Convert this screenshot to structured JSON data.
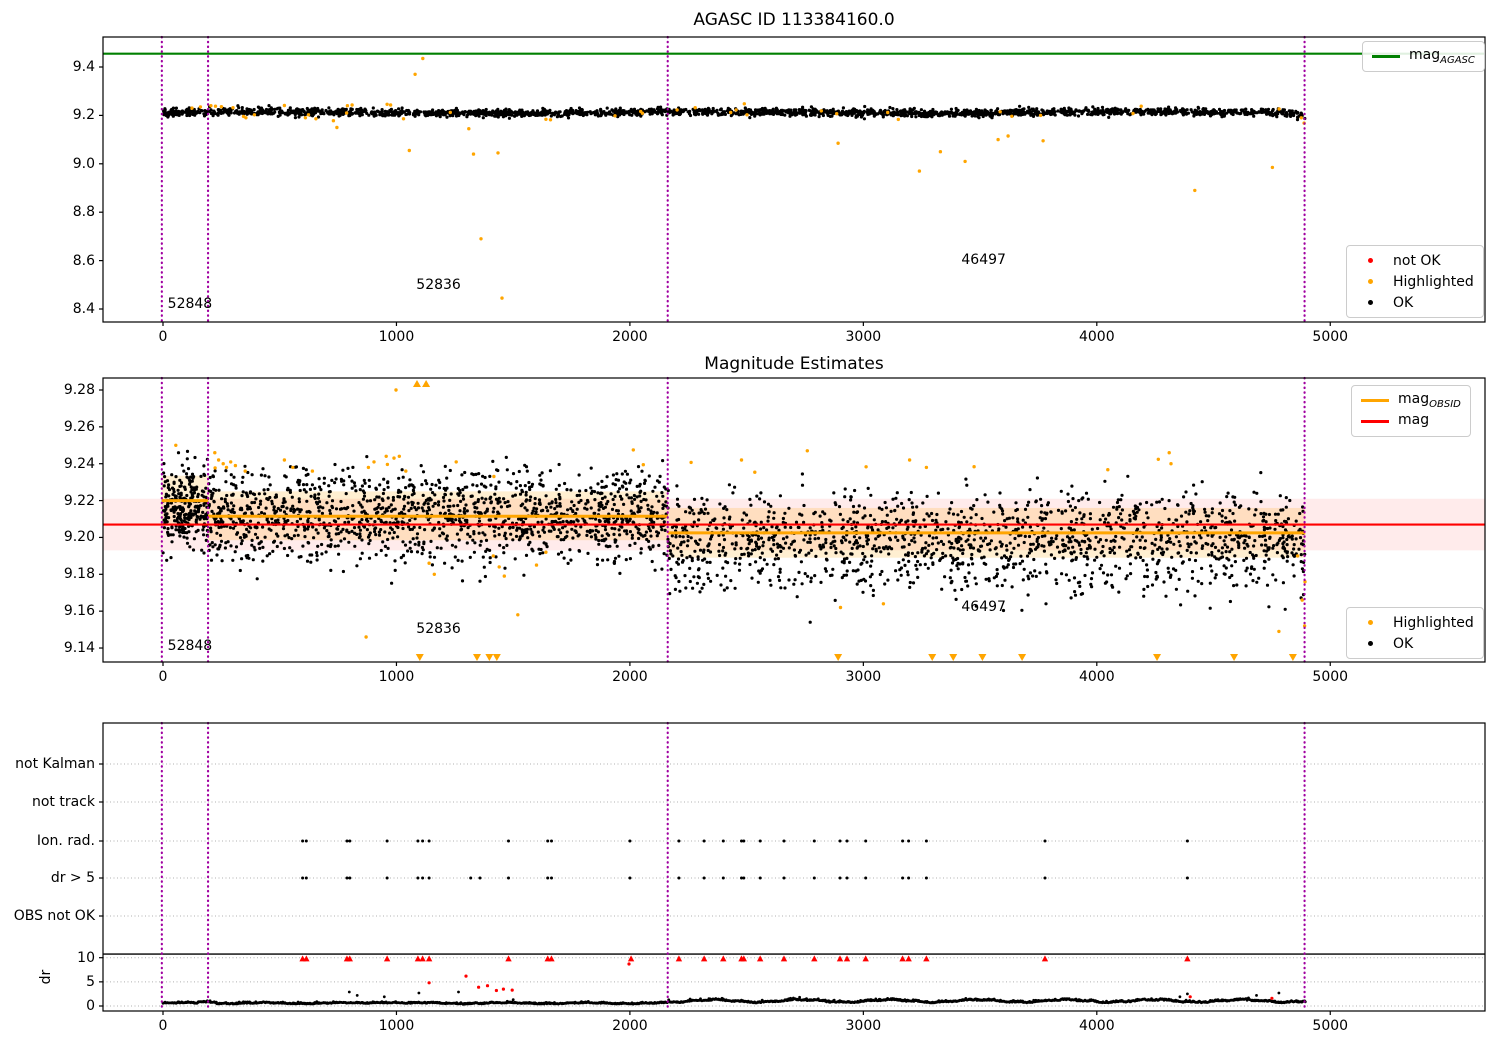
{
  "figure": {
    "bg": "#ffffff"
  },
  "colors": {
    "ok": "#000000",
    "highlighted": "#FFA500",
    "not_ok": "#FF0000",
    "mag_agasc_line": "#008000",
    "mag_line": "#FF0000",
    "mag_obsid_line": "#FFA500",
    "vline": "#A000A0",
    "grid": "#b0b0b0",
    "spine": "#000000",
    "band_red": "rgba(255,0,0,0.08)",
    "band_orange": "rgba(255,165,0,0.18)"
  },
  "legends": {
    "top_mag": {
      "items": [
        {
          "type": "line",
          "color": "#008000",
          "label": "mag",
          "sub": "AGASC"
        }
      ]
    },
    "top_status": {
      "items": [
        {
          "type": "dot",
          "color": "#FF0000",
          "label": "not OK"
        },
        {
          "type": "dot",
          "color": "#FFA500",
          "label": "Highlighted"
        },
        {
          "type": "dot",
          "color": "#000000",
          "label": "OK"
        }
      ]
    },
    "mid_mag": {
      "items": [
        {
          "type": "line",
          "color": "#FFA500",
          "label": "mag",
          "sub": "OBSID"
        },
        {
          "type": "line",
          "color": "#FF0000",
          "label": "mag",
          "sub": ""
        }
      ]
    },
    "mid_status": {
      "items": [
        {
          "type": "dot",
          "color": "#FFA500",
          "label": "Highlighted"
        },
        {
          "type": "dot",
          "color": "#000000",
          "label": "OK"
        }
      ]
    }
  },
  "chart_data": [
    {
      "id": "top",
      "type": "scatter",
      "title": "AGASC ID 113384160.0",
      "xlim": [
        -270,
        5680
      ],
      "ylim": [
        8.346,
        9.524
      ],
      "xticks": [
        "0",
        "1000",
        "2000",
        "3000",
        "4000",
        "5000"
      ],
      "yticks": [
        "8.4",
        "8.6",
        "8.8",
        "9.0",
        "9.2",
        "9.4"
      ],
      "vlines_x": [
        -5,
        193,
        2162,
        4890
      ],
      "mag_agasc_y": 9.455,
      "annotations": [
        {
          "text": "52848",
          "x": 20,
          "y": 8.405
        },
        {
          "text": "52836",
          "x": 1085,
          "y": 8.483
        },
        {
          "text": "46497",
          "x": 3420,
          "y": 8.585
        }
      ],
      "ok_generate": {
        "seed": 7,
        "n": 2300,
        "x0": 0,
        "x1": 4893,
        "base": 9.212,
        "sigma": 0.0075
      },
      "highlighted_generate": {
        "seed": 11,
        "n": 22,
        "x0": 0,
        "x1": 4890,
        "base": 9.214,
        "sigma": 0.013
      },
      "highlighted_points": [
        [
          160,
          9.235
        ],
        [
          205,
          9.24
        ],
        [
          225,
          9.238
        ],
        [
          250,
          9.236
        ],
        [
          300,
          9.232
        ],
        [
          345,
          9.196
        ],
        [
          355,
          9.19
        ],
        [
          520,
          9.241
        ],
        [
          610,
          9.19
        ],
        [
          655,
          9.186
        ],
        [
          730,
          9.178
        ],
        [
          745,
          9.15
        ],
        [
          790,
          9.24
        ],
        [
          810,
          9.243
        ],
        [
          960,
          9.246
        ],
        [
          975,
          9.243
        ],
        [
          1030,
          9.186
        ],
        [
          1055,
          9.055
        ],
        [
          1080,
          9.37
        ],
        [
          1113,
          9.435
        ],
        [
          1310,
          9.145
        ],
        [
          1330,
          9.04
        ],
        [
          1362,
          8.69
        ],
        [
          1435,
          9.045
        ],
        [
          1452,
          8.445
        ],
        [
          1640,
          9.184
        ],
        [
          1660,
          9.182
        ],
        [
          2490,
          9.248
        ],
        [
          2892,
          9.085
        ],
        [
          3240,
          8.97
        ],
        [
          3330,
          9.05
        ],
        [
          3436,
          9.01
        ],
        [
          3577,
          9.1
        ],
        [
          3620,
          9.115
        ],
        [
          3770,
          9.095
        ],
        [
          4190,
          9.238
        ],
        [
          4420,
          8.89
        ],
        [
          4752,
          8.985
        ],
        [
          4876,
          9.19
        ],
        [
          4888,
          9.168
        ]
      ]
    },
    {
      "id": "middle",
      "type": "scatter",
      "title": "Magnitude Estimates",
      "xlim": [
        -270,
        5680
      ],
      "ylim": [
        9.132,
        9.2865
      ],
      "xticks": [
        "0",
        "1000",
        "2000",
        "3000",
        "4000",
        "5000"
      ],
      "yticks": [
        "9.14",
        "9.16",
        "9.18",
        "9.20",
        "9.22",
        "9.24",
        "9.26",
        "9.28"
      ],
      "vlines_x": [
        -5,
        193,
        2162,
        4890
      ],
      "mag_line_y": 9.207,
      "band_red": {
        "y0": 9.193,
        "y1": 9.221
      },
      "obsid_segments": [
        {
          "x0": -5,
          "x1": 193,
          "y": 9.22
        },
        {
          "x0": 193,
          "x1": 2162,
          "y": 9.2115
        },
        {
          "x0": 2162,
          "x1": 4893,
          "y": 9.2025
        }
      ],
      "band_orange_segments": [
        {
          "x0": -5,
          "x1": 193,
          "y0": 9.2065,
          "y1": 9.2335
        },
        {
          "x0": 193,
          "x1": 2162,
          "y0": 9.1985,
          "y1": 9.225
        },
        {
          "x0": 2162,
          "x1": 4893,
          "y0": 9.189,
          "y1": 9.216
        }
      ],
      "annotations": [
        {
          "text": "52848",
          "x": 20,
          "y": 9.139
        },
        {
          "text": "52836",
          "x": 1085,
          "y": 9.148
        },
        {
          "text": "46497",
          "x": 3420,
          "y": 9.16
        }
      ],
      "ok_segments": [
        {
          "seed": 21,
          "n": 280,
          "x0": 0,
          "x1": 193,
          "base": 9.215,
          "sigma": 0.0095,
          "hi_frac": 0.08,
          "lo_frac": 0.02
        },
        {
          "seed": 22,
          "n": 1450,
          "x0": 193,
          "x1": 2162,
          "base": 9.211,
          "sigma": 0.01,
          "hi_frac": 0.09,
          "lo_frac": 0.04
        },
        {
          "seed": 23,
          "n": 1550,
          "x0": 2162,
          "x1": 4893,
          "base": 9.1985,
          "sigma": 0.01,
          "hi_frac": 0.08,
          "lo_frac": 0.1
        }
      ],
      "highlighted_generate": {
        "seed": 27,
        "n": 12,
        "x0": 200,
        "x1": 4700,
        "base": 9.2395,
        "sigma": 0.003
      },
      "highlighted_points": [
        [
          55,
          9.25
        ],
        [
          222,
          9.246
        ],
        [
          238,
          9.242
        ],
        [
          258,
          9.24
        ],
        [
          272,
          9.238
        ],
        [
          290,
          9.241
        ],
        [
          310,
          9.239
        ],
        [
          352,
          9.236
        ],
        [
          520,
          9.242
        ],
        [
          556,
          9.238
        ],
        [
          640,
          9.236
        ],
        [
          870,
          9.146
        ],
        [
          880,
          9.238
        ],
        [
          904,
          9.241
        ],
        [
          956,
          9.244
        ],
        [
          998,
          9.28
        ],
        [
          1012,
          9.244
        ],
        [
          1040,
          9.236
        ],
        [
          1140,
          9.186
        ],
        [
          1162,
          9.18
        ],
        [
          1256,
          9.241
        ],
        [
          1415,
          9.19
        ],
        [
          1440,
          9.184
        ],
        [
          1462,
          9.179
        ],
        [
          1520,
          9.158
        ],
        [
          1600,
          9.185
        ],
        [
          1640,
          9.192
        ],
        [
          2478,
          9.242
        ],
        [
          2760,
          9.247
        ],
        [
          2902,
          9.162
        ],
        [
          3086,
          9.164
        ],
        [
          3198,
          9.242
        ],
        [
          3270,
          9.238
        ],
        [
          4310,
          9.246
        ],
        [
          4318,
          9.24
        ],
        [
          4780,
          9.149
        ],
        [
          4860,
          9.19
        ],
        [
          4880,
          9.166
        ],
        [
          4890,
          9.152
        ],
        [
          4892,
          9.176
        ]
      ],
      "clip_up_x": [
        1088,
        1127
      ],
      "clip_down_x": [
        1100,
        1345,
        1398,
        1430,
        2892,
        3295,
        3385,
        3510,
        3680,
        4258,
        4588,
        4840
      ]
    },
    {
      "id": "bottom",
      "type": "scatter",
      "title": "",
      "categories": [
        "not Kalman",
        "not track",
        "Ion. rad.",
        "dr > 5",
        "OBS not OK"
      ],
      "yticks": [
        "10",
        "5",
        "0"
      ],
      "ylabel": "dr",
      "xticks": [
        "0",
        "1000",
        "2000",
        "3000",
        "4000",
        "5000"
      ],
      "vlines_x": [
        -5,
        193,
        2162,
        4890
      ],
      "limit_line_y": 10.75,
      "ion_rad_x": [
        598,
        614,
        788,
        800,
        960,
        1092,
        1112,
        1140,
        1480,
        1648,
        1664,
        2000,
        2210,
        2318,
        2400,
        2478,
        2488,
        2558,
        2660,
        2790,
        2900,
        2930,
        3010,
        3168,
        3194,
        3270,
        3778,
        4388
      ],
      "dr_gt5_x": [
        598,
        614,
        788,
        800,
        960,
        1092,
        1112,
        1140,
        1318,
        1358,
        1480,
        1648,
        1664,
        2000,
        2210,
        2318,
        2400,
        2478,
        2488,
        2558,
        2660,
        2790,
        2900,
        2930,
        3010,
        3168,
        3194,
        3270,
        3778,
        4388
      ],
      "red_clip_x": [
        598,
        614,
        788,
        800,
        960,
        1092,
        1112,
        1140,
        1480,
        1648,
        1664,
        2005,
        2210,
        2318,
        2400,
        2478,
        2488,
        2558,
        2660,
        2790,
        2900,
        2930,
        3010,
        3168,
        3194,
        3270,
        3778,
        4388
      ],
      "red_points": [
        [
          1140,
          4.8
        ],
        [
          1298,
          6.2
        ],
        [
          1352,
          3.9
        ],
        [
          1390,
          4.2
        ],
        [
          1428,
          3.2
        ],
        [
          1458,
          3.5
        ],
        [
          1496,
          3.3
        ],
        [
          1996,
          8.7
        ],
        [
          4400,
          1.9
        ],
        [
          4750,
          1.6
        ]
      ],
      "black_points": [
        [
          798,
          2.9
        ],
        [
          832,
          2.2
        ],
        [
          948,
          1.9
        ],
        [
          1096,
          2.7
        ],
        [
          1266,
          2.9
        ],
        [
          1500,
          1.3
        ],
        [
          4356,
          1.9
        ],
        [
          4388,
          2.5
        ],
        [
          4684,
          2.2
        ],
        [
          4780,
          2.7
        ]
      ],
      "trace": {
        "seed": 31,
        "n": 1650,
        "x0": 0,
        "x1": 4893,
        "split": 2162,
        "seg1_base": 0.52,
        "seg1_amp": 0.1,
        "seg1_noise": 0.12,
        "seg2_base": 0.85,
        "seg2_amp": 0.25,
        "seg2_noise": 0.16
      }
    }
  ]
}
